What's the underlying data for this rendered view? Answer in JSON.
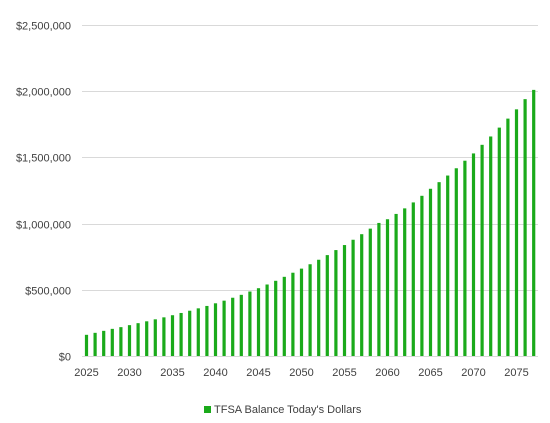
{
  "chart_data": {
    "type": "bar",
    "legend": {
      "label": "TFSA Balance Today's Dollars",
      "position": "bottom"
    },
    "colors": {
      "bar": "#1AAA1A",
      "grid": "#D9D9D9",
      "text": "#404040"
    },
    "grid": true,
    "ylim": [
      0,
      2500000
    ],
    "y_ticks": [
      {
        "value": 0,
        "label": "$0"
      },
      {
        "value": 500000,
        "label": "$500,000"
      },
      {
        "value": 1000000,
        "label": "$1,000,000"
      },
      {
        "value": 1500000,
        "label": "$1,500,000"
      },
      {
        "value": 2000000,
        "label": "$2,000,000"
      },
      {
        "value": 2500000,
        "label": "$2,500,000"
      }
    ],
    "x_tick_labels": [
      "2025",
      "2030",
      "2035",
      "2040",
      "2045",
      "2050",
      "2055",
      "2060",
      "2065",
      "2070",
      "2075"
    ],
    "categories": [
      2025,
      2026,
      2027,
      2028,
      2029,
      2030,
      2031,
      2032,
      2033,
      2034,
      2035,
      2036,
      2037,
      2038,
      2039,
      2040,
      2041,
      2042,
      2043,
      2044,
      2045,
      2046,
      2047,
      2048,
      2049,
      2050,
      2051,
      2052,
      2053,
      2054,
      2055,
      2056,
      2057,
      2058,
      2059,
      2060,
      2061,
      2062,
      2063,
      2064,
      2065,
      2066,
      2067,
      2068,
      2069,
      2070,
      2071,
      2072,
      2073,
      2074,
      2075,
      2076,
      2077
    ],
    "values": [
      160000,
      175000,
      190000,
      205000,
      218000,
      233000,
      248000,
      262000,
      277000,
      292000,
      308000,
      325000,
      342000,
      360000,
      378000,
      398000,
      418000,
      440000,
      462000,
      487000,
      512000,
      540000,
      568000,
      598000,
      629000,
      660000,
      693000,
      727000,
      762000,
      800000,
      838000,
      878000,
      920000,
      962000,
      1005000,
      1033000,
      1073000,
      1115000,
      1160000,
      1210000,
      1263000,
      1313000,
      1363000,
      1418000,
      1475000,
      1530000,
      1595000,
      1658000,
      1725000,
      1793000,
      1863000,
      1940000,
      2010000
    ]
  }
}
